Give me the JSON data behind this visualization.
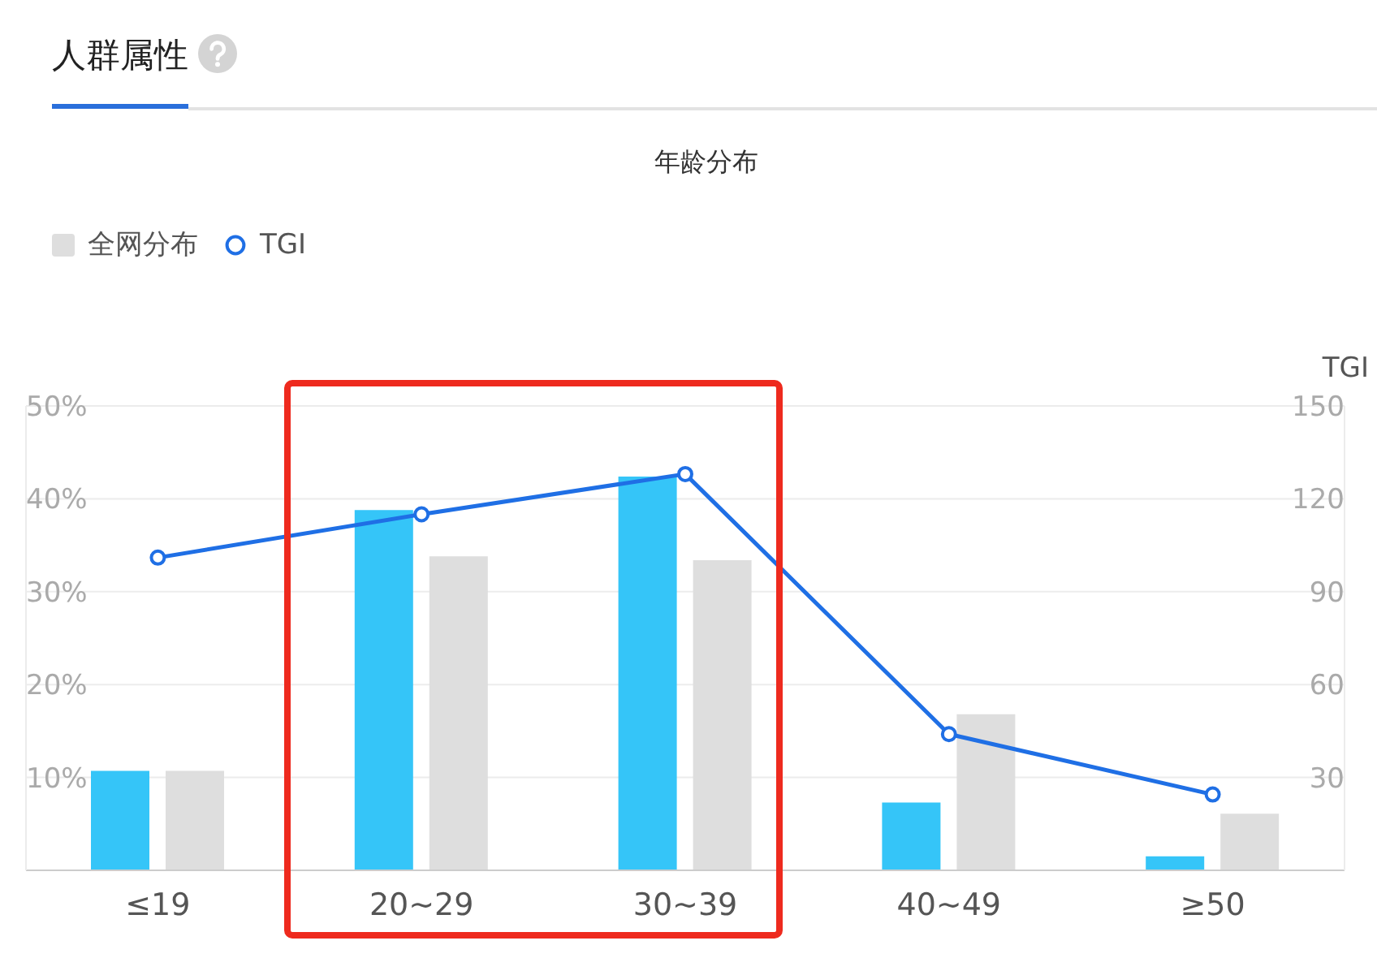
{
  "chart_data": {
    "type": "bar",
    "title": "人群属性",
    "subtitle": "年龄分布",
    "y2label": "TGI",
    "categories": [
      "≤19",
      "20~29",
      "30~39",
      "40~49",
      "≥50"
    ],
    "series": [
      {
        "color": "#35c5f8",
        "values": [
          10.7,
          38.8,
          42.4,
          7.3,
          1.5
        ]
      },
      {
        "name": "全网分布",
        "color": "#dedede",
        "values": [
          10.7,
          33.8,
          33.4,
          16.8,
          6.1
        ]
      },
      {
        "name": "TGI",
        "type": "line",
        "axis": "y2",
        "color": "#1f6fe5",
        "values": [
          101,
          115,
          128,
          44,
          24.5
        ]
      }
    ],
    "ylim": [
      0,
      50
    ],
    "yticks": [
      {
        "value": 0,
        "label": null
      },
      {
        "value": 10,
        "label": "10%"
      },
      {
        "value": 20,
        "label": "20%"
      },
      {
        "value": 30,
        "label": "30%"
      },
      {
        "value": 40,
        "label": "40%"
      },
      {
        "value": 50,
        "label": "50%"
      }
    ],
    "y2lim": [
      0,
      150
    ],
    "y2ticks": [
      30,
      60,
      90,
      120,
      150
    ],
    "grid": "y",
    "legend": "top left",
    "marker": "circle"
  }
}
